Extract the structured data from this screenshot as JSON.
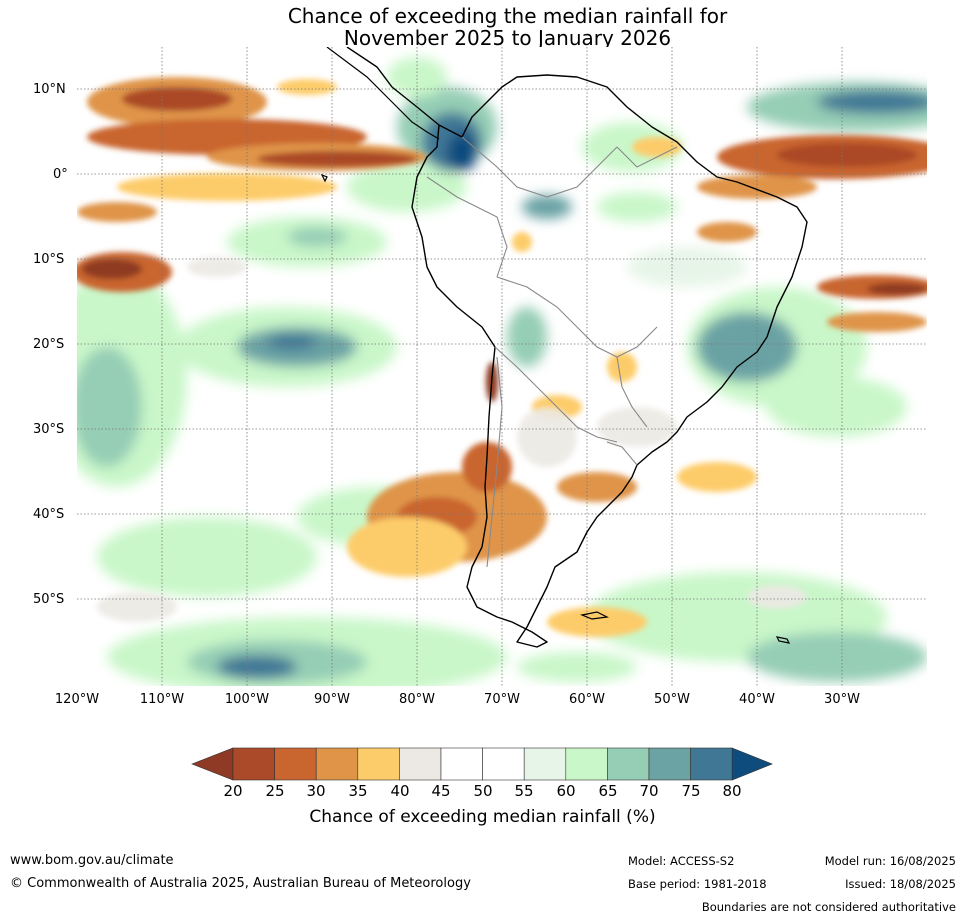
{
  "title": {
    "line1": "Chance of exceeding the median rainfall for",
    "line2": "November 2025 to January 2026"
  },
  "map": {
    "lat_labels": [
      "10°N",
      "0°",
      "10°S",
      "20°S",
      "30°S",
      "40°S",
      "50°S"
    ],
    "lon_labels": [
      "120°W",
      "110°W",
      "100°W",
      "90°W",
      "80°W",
      "70°W",
      "60°W",
      "50°W",
      "40°W",
      "30°W"
    ],
    "graticule": "dotted"
  },
  "colorbar": {
    "label": "Chance of exceeding median rainfall (%)",
    "ticks": [
      "20",
      "25",
      "30",
      "35",
      "40",
      "45",
      "50",
      "55",
      "60",
      "65",
      "70",
      "75",
      "80"
    ],
    "colors": {
      "below20": "#8e3a24",
      "20-25": "#ab4a28",
      "25-30": "#c9652f",
      "30-35": "#df9448",
      "35-40": "#fdcc6a",
      "40-45": "#ece9e4",
      "45-50": "#ffffff",
      "50-55": "#ffffff",
      "55-60": "#e7f5e8",
      "60-65": "#c9f7c9",
      "65-70": "#95cdb5",
      "70-75": "#6ba2a4",
      "75-80": "#3f7795",
      "above80": "#0f4c7e"
    }
  },
  "footer": {
    "website": "www.bom.gov.au/climate",
    "copyright": "© Commonwealth of Australia 2025, Australian Bureau of Meteorology",
    "model": "Model: ACCESS-S2",
    "base_period": "Base period: 1981-2018",
    "model_run": "Model run: 16/08/2025",
    "issued": "Issued: 18/08/2025",
    "boundaries_note": "Boundaries are not considered authoritative"
  }
}
